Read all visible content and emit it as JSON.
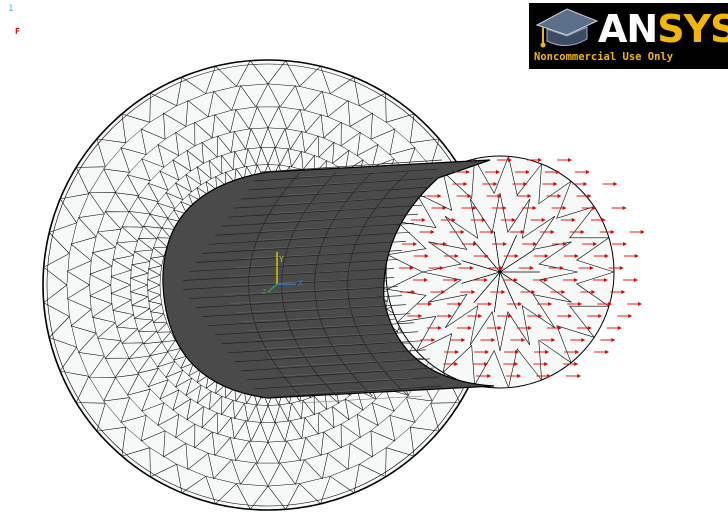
{
  "window": {
    "number": "1"
  },
  "symbols": {
    "load_label": "F"
  },
  "logo": {
    "brand_a": "AN",
    "brand_b": "SYS",
    "subtitle": "Noncommercial Use Only",
    "icon": "graduation-cap-icon"
  },
  "triad": {
    "x_label": "X",
    "y_label": "Y",
    "z_label": "Z"
  },
  "colors": {
    "mesh_line": "#000000",
    "surface_fill": "#f7f9f9",
    "solid_dark": "#4a4a4a",
    "force_arrow": "#e00000",
    "logo_accent": "#f2b705",
    "window_number": "#5aa9d6"
  }
}
